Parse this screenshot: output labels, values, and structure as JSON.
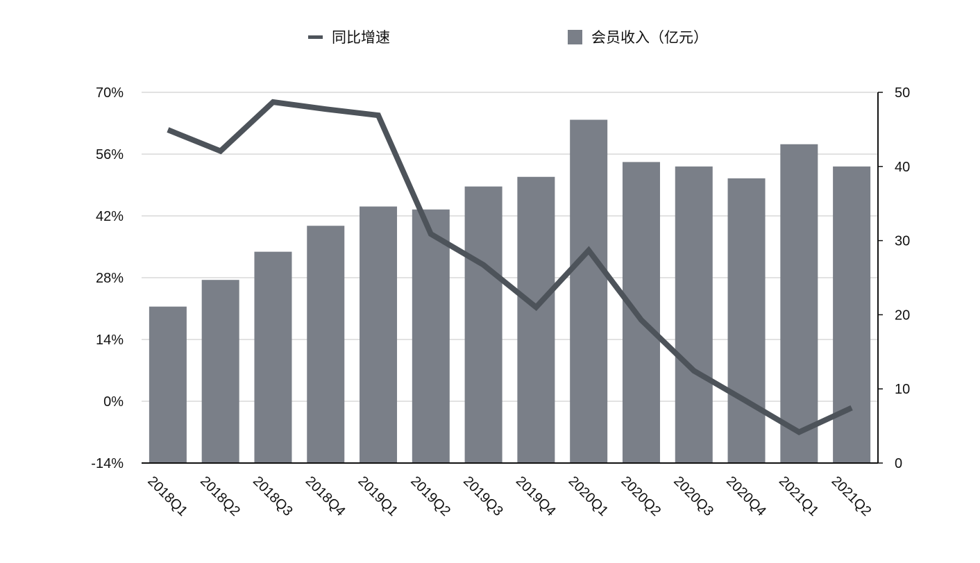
{
  "chart_data": {
    "type": "bar",
    "categories": [
      "2018Q1",
      "2018Q2",
      "2018Q3",
      "2018Q4",
      "2019Q1",
      "2019Q2",
      "2019Q3",
      "2019Q4",
      "2020Q1",
      "2020Q2",
      "2020Q3",
      "2020Q4",
      "2021Q1",
      "2021Q2"
    ],
    "series": [
      {
        "name": "会员收入（亿元）",
        "type": "bar",
        "axis": "right",
        "color": "#7a7f88",
        "values": [
          21.1,
          24.7,
          28.5,
          32.0,
          34.6,
          34.2,
          37.3,
          38.6,
          46.3,
          40.6,
          40.0,
          38.4,
          43.0,
          40.0
        ]
      },
      {
        "name": "同比增速",
        "type": "line",
        "axis": "left",
        "color": "#4d535a",
        "values": [
          61.5,
          56.7,
          67.8,
          66.2,
          64.8,
          37.9,
          30.9,
          21.3,
          34.2,
          18.4,
          6.9,
          0.0,
          -7.0,
          -1.5
        ]
      }
    ],
    "y_left": {
      "ylim": [
        -14,
        70
      ],
      "ticks": [
        "-14%",
        "0%",
        "14%",
        "28%",
        "42%",
        "56%",
        "70%"
      ],
      "tick_values": [
        -14,
        0,
        14,
        28,
        42,
        56,
        70
      ]
    },
    "y_right": {
      "ylim": [
        0,
        50
      ],
      "ticks": [
        "0",
        "10",
        "20",
        "30",
        "40",
        "50"
      ],
      "tick_values": [
        0,
        10,
        20,
        30,
        40,
        50
      ]
    },
    "legend": {
      "position": "top-center"
    },
    "grid": true,
    "title": "",
    "xlabel": "",
    "ylabel": ""
  }
}
